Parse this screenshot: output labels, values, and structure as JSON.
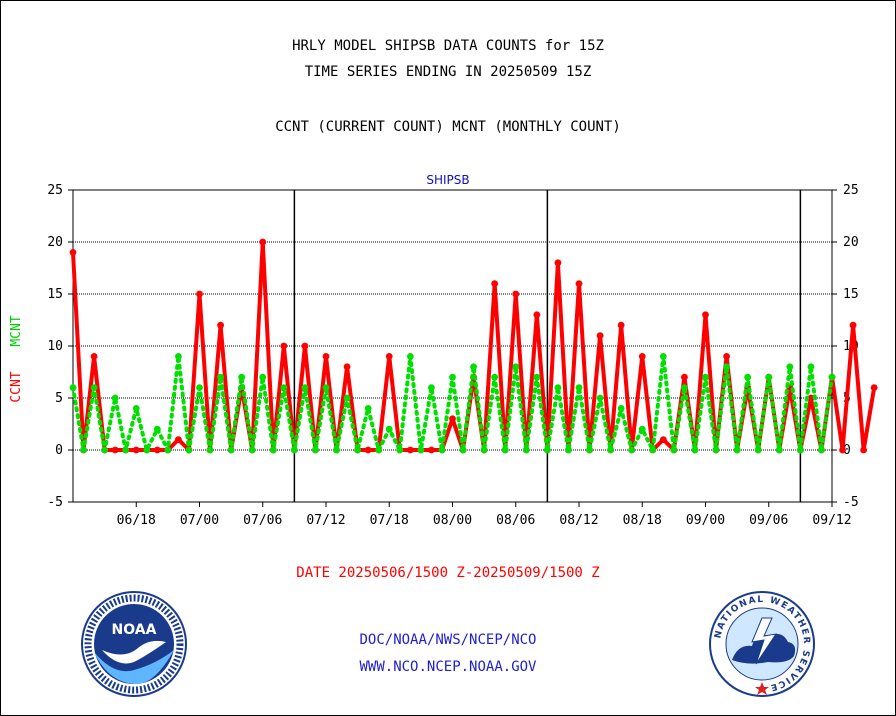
{
  "header": {
    "line1": "HRLY MODEL SHIPSB DATA COUNTS for 15Z",
    "line2": "TIME SERIES ENDING IN 20250509 15Z",
    "line3": "CCNT (CURRENT COUNT) MCNT (MONTHLY COUNT)"
  },
  "footer": {
    "date_range": "DATE 20250506/1500 Z-20250509/1500 Z",
    "org": "DOC/NOAA/NWS/NCEP/NCO",
    "url": "WWW.NCO.NCEP.NOAA.GOV"
  },
  "logos": {
    "left": "NOAA",
    "right_ring": "NATIONAL WEATHER SERVICE"
  },
  "chart_data": {
    "type": "line",
    "title": "SHIPSB",
    "ylabel_parts": [
      "CCNT",
      "MCNT"
    ],
    "ylim": [
      -5,
      25
    ],
    "yticks": [
      -5,
      0,
      5,
      10,
      15,
      20,
      25
    ],
    "xlim": [
      0,
      72
    ],
    "xticks": [
      {
        "x": 6,
        "label": "06/18"
      },
      {
        "x": 12,
        "label": "07/00"
      },
      {
        "x": 18,
        "label": "07/06"
      },
      {
        "x": 24,
        "label": "07/12"
      },
      {
        "x": 30,
        "label": "07/18"
      },
      {
        "x": 36,
        "label": "08/00"
      },
      {
        "x": 42,
        "label": "08/06"
      },
      {
        "x": 48,
        "label": "08/12"
      },
      {
        "x": 54,
        "label": "08/18"
      },
      {
        "x": 60,
        "label": "09/00"
      },
      {
        "x": 66,
        "label": "09/06"
      },
      {
        "x": 72,
        "label": "09/12"
      }
    ],
    "day_boundaries": [
      21,
      45,
      69
    ],
    "grid_y": [
      5,
      10,
      15,
      20
    ],
    "series": [
      {
        "name": "CCNT",
        "color": "#ff0000",
        "style": "solid",
        "values": [
          19,
          0,
          9,
          0,
          0,
          0,
          0,
          0,
          0,
          0,
          1,
          0,
          15,
          0,
          12,
          0,
          6,
          0,
          20,
          0,
          10,
          0,
          10,
          0,
          9,
          0,
          8,
          0,
          0,
          0,
          9,
          0,
          0,
          0,
          0,
          0,
          3,
          0,
          7,
          0,
          16,
          0,
          15,
          0,
          13,
          0,
          18,
          0,
          16,
          0,
          11,
          0,
          12,
          0,
          9,
          0,
          1,
          0,
          7,
          0,
          13,
          0,
          9,
          0,
          6,
          0,
          7,
          0,
          6,
          0,
          5,
          0,
          7,
          0,
          12,
          0,
          6
        ]
      },
      {
        "name": "MCNT",
        "color": "#00e000",
        "style": "dotted",
        "values": [
          6,
          0,
          6,
          0,
          5,
          0,
          4,
          0,
          2,
          0,
          9,
          0,
          6,
          0,
          7,
          0,
          7,
          0,
          7,
          0,
          6,
          0,
          6,
          0,
          6,
          0,
          5,
          0,
          4,
          0,
          2,
          0,
          9,
          0,
          6,
          0,
          7,
          0,
          8,
          0,
          7,
          0,
          8,
          0,
          7,
          0,
          6,
          0,
          6,
          0,
          5,
          0,
          4,
          0,
          2,
          0,
          9,
          0,
          6,
          0,
          7,
          0,
          8,
          0,
          7,
          0,
          7,
          0,
          8,
          0,
          8,
          0,
          7
        ]
      }
    ]
  }
}
